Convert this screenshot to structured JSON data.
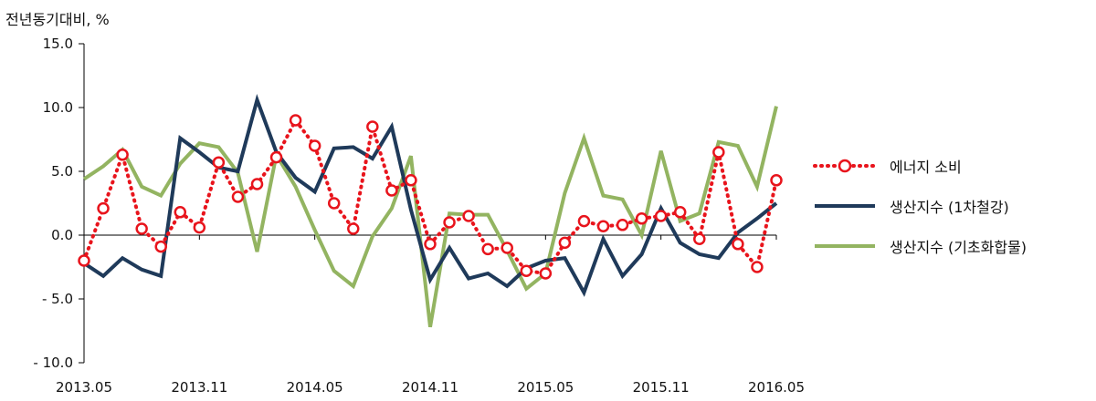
{
  "chart_data": {
    "type": "line",
    "unit_label": "전년동기대비, %",
    "ylim": [
      -10,
      15
    ],
    "y_ticks": [
      15.0,
      10.0,
      5.0,
      0.0,
      -5.0,
      -10.0
    ],
    "y_tick_labels": [
      "15.0",
      "10.0",
      "5.0",
      "0.0",
      "- 5.0",
      "- 10.0"
    ],
    "x": [
      "2013.05",
      "2013.06",
      "2013.07",
      "2013.08",
      "2013.09",
      "2013.10",
      "2013.11",
      "2013.12",
      "2014.01",
      "2014.02",
      "2014.03",
      "2014.04",
      "2014.05",
      "2014.06",
      "2014.07",
      "2014.08",
      "2014.09",
      "2014.10",
      "2014.11",
      "2014.12",
      "2015.01",
      "2015.02",
      "2015.03",
      "2015.04",
      "2015.05",
      "2015.06",
      "2015.07",
      "2015.08",
      "2015.09",
      "2015.10",
      "2015.11",
      "2015.12",
      "2016.01",
      "2016.02",
      "2016.03",
      "2016.04",
      "2016.05"
    ],
    "x_tick_labels": [
      "2013.05",
      "2013.11",
      "2014.05",
      "2014.11",
      "2015.05",
      "2015.11",
      "2016.05"
    ],
    "x_tick_every": 6,
    "grid": false,
    "legend_position": "right",
    "series": [
      {
        "name": "에너지 소비",
        "color": "#e8141c",
        "style": "dotted-circle",
        "values": [
          -2.0,
          2.1,
          6.3,
          0.5,
          -0.9,
          1.8,
          0.6,
          5.7,
          3.0,
          4.0,
          6.1,
          9.0,
          7.0,
          2.5,
          0.5,
          8.5,
          3.5,
          4.3,
          -0.7,
          1.0,
          1.5,
          -1.1,
          -1.0,
          -2.8,
          -3.0,
          -0.6,
          1.1,
          0.7,
          0.8,
          1.3,
          1.5,
          1.8,
          -0.3,
          6.5,
          -0.7,
          -2.5,
          4.3
        ]
      },
      {
        "name": "생산지수 (1차철강)",
        "color": "#1f3a5a",
        "style": "solid",
        "values": [
          -2.2,
          -3.2,
          -1.8,
          -2.7,
          -3.2,
          7.6,
          6.5,
          5.3,
          5.0,
          10.6,
          6.5,
          4.5,
          3.4,
          6.8,
          6.9,
          6.0,
          8.5,
          2.0,
          -3.5,
          -1.0,
          -3.4,
          -3.0,
          -4.0,
          -2.6,
          -2.0,
          -1.8,
          -4.5,
          -0.3,
          -3.2,
          -1.5,
          2.1,
          -0.6,
          -1.5,
          -1.8,
          0.2,
          1.3,
          2.5
        ]
      },
      {
        "name": "생산지수 (기초화합물)",
        "color": "#93b461",
        "style": "solid",
        "values": [
          4.4,
          5.4,
          6.7,
          3.8,
          3.1,
          5.6,
          7.2,
          6.9,
          4.9,
          -1.3,
          6.3,
          3.8,
          0.4,
          -2.8,
          -4.0,
          -0.1,
          2.1,
          6.2,
          -7.2,
          1.7,
          1.6,
          1.6,
          -1.2,
          -4.2,
          -3.0,
          3.3,
          7.6,
          3.1,
          2.8,
          0.0,
          6.6,
          1.1,
          1.7,
          7.3,
          7.0,
          3.8,
          10.1
        ]
      }
    ]
  }
}
